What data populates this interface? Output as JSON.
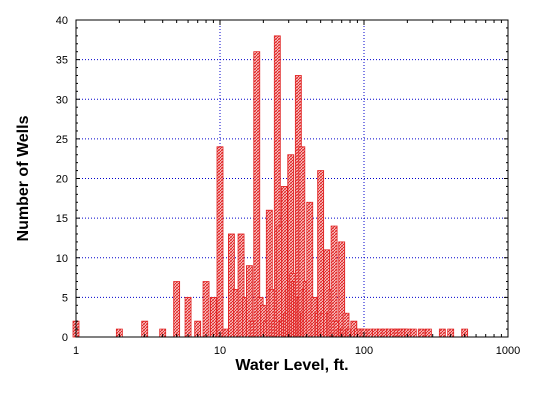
{
  "chart_data": {
    "type": "bar",
    "title": "",
    "xlabel": "Water Level, ft.",
    "ylabel": "Number of  Wells",
    "xscale": "log",
    "xlim": [
      1,
      1000
    ],
    "ylim": [
      0,
      40
    ],
    "x_ticks": [
      "1",
      "10",
      "100",
      "1000"
    ],
    "y_ticks": [
      "0",
      "5",
      "10",
      "15",
      "20",
      "25",
      "30",
      "35",
      "40"
    ],
    "grid": true,
    "legend": "none",
    "bar_color": "#e02020",
    "grid_color": "#0000cc",
    "series": [
      {
        "x": [
          1,
          2,
          3,
          4,
          5,
          6,
          7,
          8,
          9,
          10,
          11,
          12,
          13,
          14,
          15,
          16,
          17,
          18,
          19,
          20,
          21,
          22,
          23,
          24,
          25,
          26,
          27,
          28,
          29,
          30,
          31,
          32,
          33,
          34,
          35,
          36,
          37,
          38,
          39,
          40,
          42,
          45,
          48,
          50,
          52,
          55,
          58,
          60,
          62,
          65,
          68,
          70,
          72,
          75,
          78,
          80,
          85,
          90,
          95,
          100,
          110,
          120,
          130,
          140,
          150,
          160,
          170,
          180,
          190,
          200,
          220,
          250,
          280,
          350,
          400,
          500
        ],
        "y": [
          2,
          1,
          2,
          1,
          7,
          5,
          2,
          7,
          5,
          24,
          1,
          13,
          6,
          13,
          5,
          9,
          2,
          36,
          5,
          4,
          2,
          16,
          6,
          2,
          38,
          14,
          2,
          19,
          3,
          6,
          23,
          8,
          7,
          7,
          33,
          5,
          24,
          3,
          6,
          7,
          17,
          5,
          3,
          21,
          3,
          11,
          3,
          6,
          14,
          2,
          1,
          12,
          1,
          3,
          1,
          1,
          2,
          1,
          1,
          1,
          1,
          1,
          1,
          1,
          1,
          1,
          1,
          1,
          1,
          1,
          1,
          1,
          1,
          1,
          1,
          1
        ]
      }
    ]
  }
}
